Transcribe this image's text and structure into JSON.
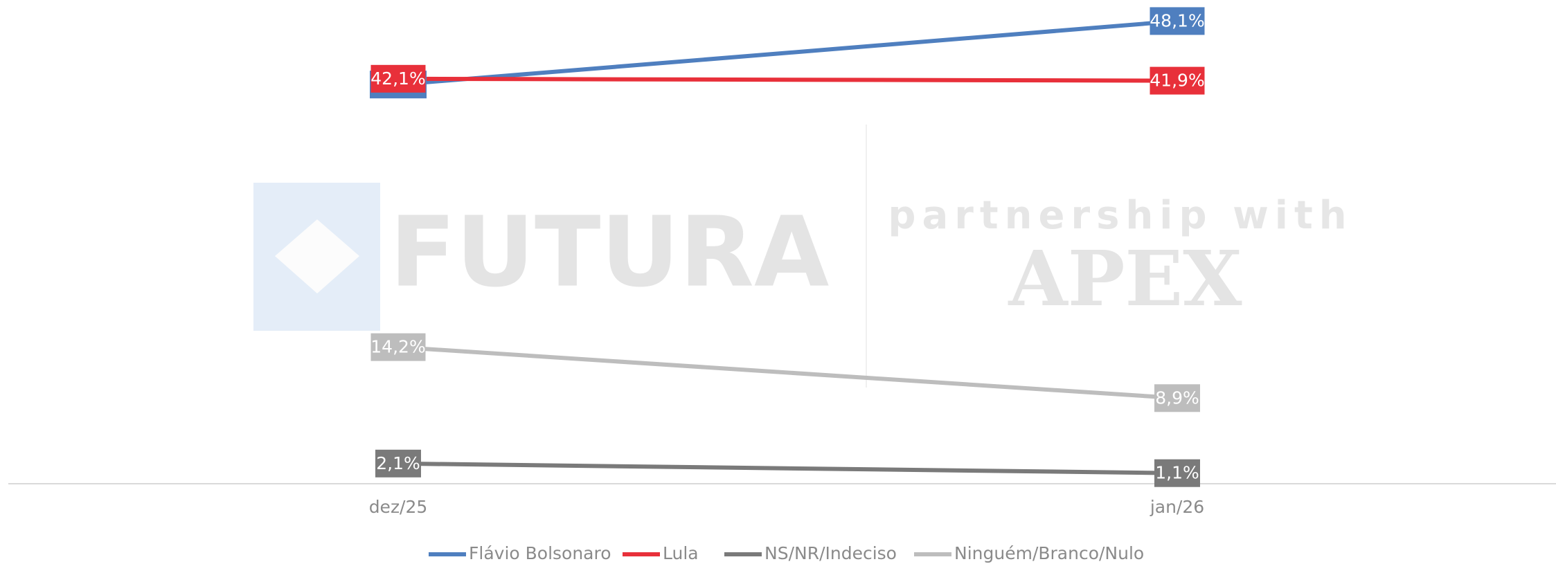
{
  "watermark": {
    "brand": "FUTURA",
    "tagline": "partnership with",
    "partner": "APEX"
  },
  "chart_data": {
    "type": "line",
    "categories": [
      "dez/25",
      "jan/26"
    ],
    "ylim": [
      0,
      50
    ],
    "series": [
      {
        "name": "Flávio Bolsonaro",
        "color": "#4f7fbf",
        "values": [
          41.5,
          48.1
        ],
        "value_labels": [
          null,
          "48,1%"
        ]
      },
      {
        "name": "Lula",
        "color": "#e8303a",
        "values": [
          42.1,
          41.9
        ],
        "value_labels": [
          "42,1%",
          "41,9%"
        ]
      },
      {
        "name": "NS/NR/Indeciso",
        "color": "#7a7a7a",
        "values": [
          2.1,
          1.1
        ],
        "value_labels": [
          "2,1%",
          "1,1%"
        ]
      },
      {
        "name": "Ninguém/Branco/Nulo",
        "color": "#bdbdbd",
        "values": [
          14.2,
          8.9
        ],
        "value_labels": [
          "14,2%",
          "8,9%"
        ]
      }
    ]
  }
}
